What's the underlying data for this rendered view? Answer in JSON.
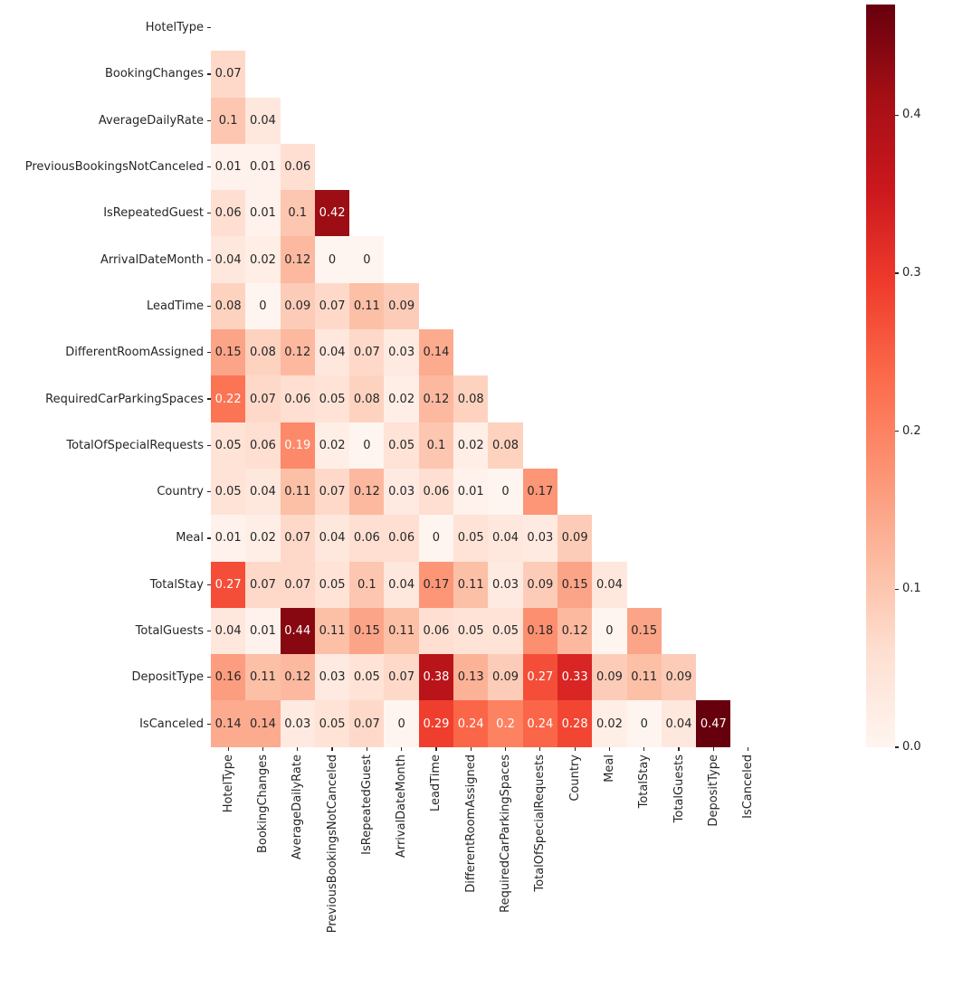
{
  "figure": {
    "background": "#ffffff",
    "tick_color": "#262626",
    "label_color": "#262626",
    "annotation_dark_color": "#262626",
    "annotation_light_color": "#ffffff"
  },
  "chart_data": {
    "type": "heatmap",
    "subtype": "correlation-matrix-lower-triangle",
    "title": "",
    "xlabel": "",
    "ylabel": "",
    "colormap": "Reds",
    "colormap_stops": [
      "#fff5f0",
      "#fee0d2",
      "#fcbba1",
      "#fc9272",
      "#fb6a4a",
      "#ef3b2c",
      "#cb181d",
      "#a50f15",
      "#67000d"
    ],
    "vmin": 0,
    "vmax": 0.47,
    "mask": "upper_triangle_and_diagonal",
    "grid": "off",
    "labels": [
      "HotelType",
      "BookingChanges",
      "AverageDailyRate",
      "PreviousBookingsNotCanceled",
      "IsRepeatedGuest",
      "ArrivalDateMonth",
      "LeadTime",
      "DifferentRoomAssigned",
      "RequiredCarParkingSpaces",
      "TotalOfSpecialRequests",
      "Country",
      "Meal",
      "TotalStay",
      "TotalGuests",
      "DepositType",
      "IsCanceled"
    ],
    "matrix": [
      [],
      [
        0.07
      ],
      [
        0.1,
        0.04
      ],
      [
        0.01,
        0.01,
        0.06
      ],
      [
        0.06,
        0.01,
        0.1,
        0.42
      ],
      [
        0.04,
        0.02,
        0.12,
        0,
        0
      ],
      [
        0.08,
        0,
        0.09,
        0.07,
        0.11,
        0.09
      ],
      [
        0.15,
        0.08,
        0.12,
        0.04,
        0.07,
        0.03,
        0.14
      ],
      [
        0.22,
        0.07,
        0.06,
        0.05,
        0.08,
        0.02,
        0.12,
        0.08
      ],
      [
        0.05,
        0.06,
        0.19,
        0.02,
        0,
        0.05,
        0.1,
        0.02,
        0.08
      ],
      [
        0.05,
        0.04,
        0.11,
        0.07,
        0.12,
        0.03,
        0.06,
        0.01,
        0,
        0.17
      ],
      [
        0.01,
        0.02,
        0.07,
        0.04,
        0.06,
        0.06,
        0,
        0.05,
        0.04,
        0.03,
        0.09
      ],
      [
        0.27,
        0.07,
        0.07,
        0.05,
        0.1,
        0.04,
        0.17,
        0.11,
        0.03,
        0.09,
        0.15,
        0.04
      ],
      [
        0.04,
        0.01,
        0.44,
        0.11,
        0.15,
        0.11,
        0.06,
        0.05,
        0.05,
        0.18,
        0.12,
        0,
        0.15
      ],
      [
        0.16,
        0.11,
        0.12,
        0.03,
        0.05,
        0.07,
        0.38,
        0.13,
        0.09,
        0.27,
        0.33,
        0.09,
        0.11,
        0.09
      ],
      [
        0.14,
        0.14,
        0.03,
        0.05,
        0.07,
        0,
        0.29,
        0.24,
        0.2,
        0.24,
        0.28,
        0.02,
        0,
        0.04,
        0.47
      ]
    ],
    "colorbar": {
      "position": "right",
      "ticks": [
        "0.4",
        "0.3",
        "0.2",
        "0.1",
        "0.0"
      ],
      "tick_values": [
        0.4,
        0.3,
        0.2,
        0.1,
        0
      ]
    }
  }
}
